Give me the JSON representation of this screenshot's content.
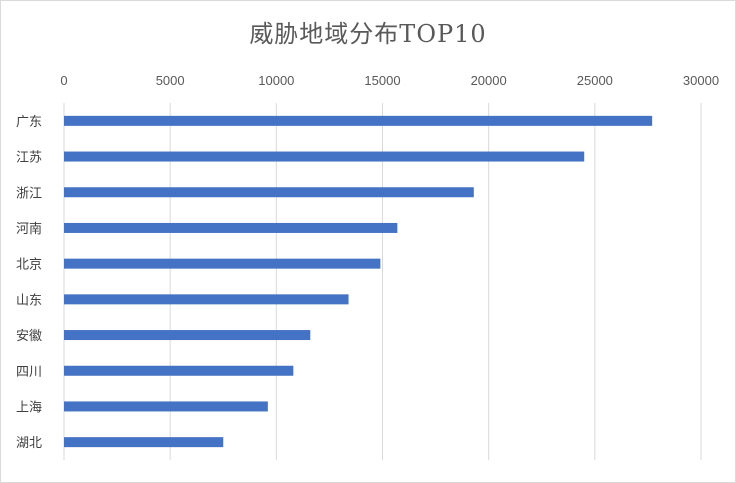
{
  "chart_data": {
    "type": "bar",
    "orientation": "horizontal",
    "title": "威胁地域分布TOP10",
    "xlabel": "",
    "ylabel": "",
    "categories": [
      "广东",
      "江苏",
      "浙江",
      "河南",
      "北京",
      "山东",
      "安徽",
      "四川",
      "上海",
      "湖北"
    ],
    "values": [
      27700,
      24500,
      19300,
      15700,
      14900,
      13400,
      11600,
      10800,
      9600,
      7500
    ],
    "xlim": [
      0,
      30000
    ],
    "x_ticks": [
      "0",
      "5000",
      "10000",
      "15000",
      "20000",
      "25000",
      "30000"
    ],
    "x_axis_position": "top",
    "grid": true,
    "legend": "none",
    "bar_color": "#4472c4",
    "grid_color": "#d9d9d9"
  }
}
